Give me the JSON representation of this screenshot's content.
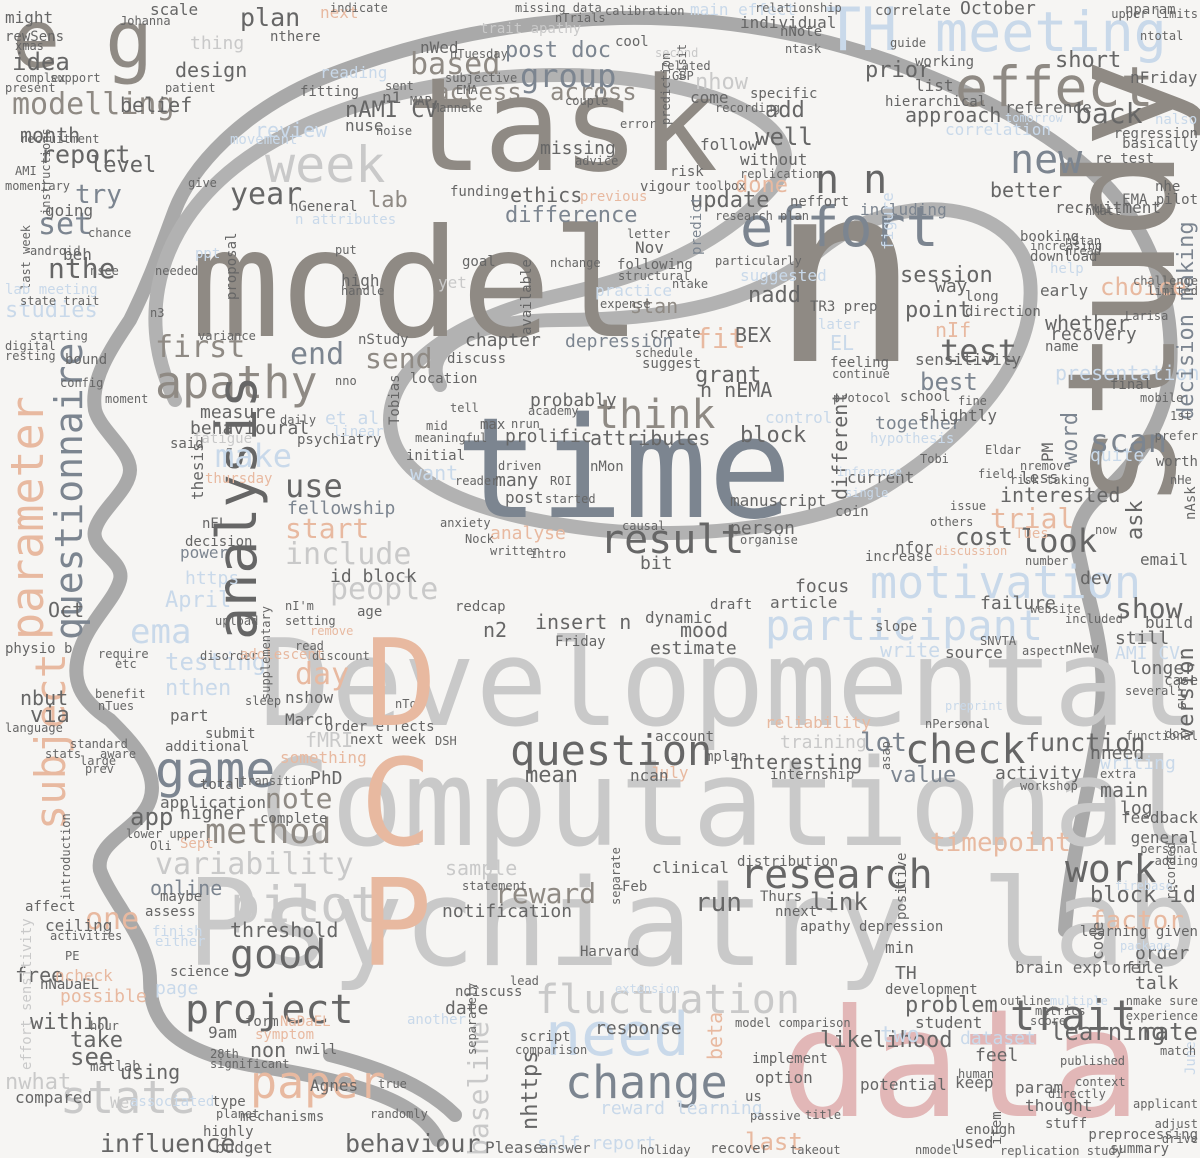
{
  "palette": {
    "background": "#f6f5f3",
    "outline": "#a9a9a9",
    "peach": "#e8b9a0",
    "greige": "#8f8a84",
    "grey": "#c9c9c9",
    "slate": "#7c8590",
    "sky": "#c9d9ea",
    "rose": "#e2b7b7",
    "dark": "#666666"
  },
  "icons": {
    "silhouette": "head-profile-with-spiral-brain"
  },
  "words": {
    "model": "model",
    "n_big": "n",
    "task": "task",
    "time": "time",
    "study": "study",
    "developmental": "Developmental",
    "computational": "Computational",
    "psychiatry_lab": "Psychiatry lab",
    "data": "data",
    "letter_d": "D",
    "letter_c": "C",
    "letter_p": "P",
    "e": "e",
    "g": "g",
    "th": "TH",
    "meeting": "meeting",
    "effect": "effect",
    "week": "week",
    "effort": "effort",
    "new": "new",
    "apathy": "apathy",
    "analysis": "analysis",
    "parameter": "parameter",
    "questionnaire": "questionnaire",
    "subject": "subject",
    "motivation": "motivation",
    "participant": "participant",
    "question": "question",
    "change": "change",
    "need": "need",
    "fluctuation": "fluctuation",
    "research": "research",
    "pilot": "pilot",
    "game": "game",
    "state": "state",
    "paper": "paper",
    "project": "project",
    "good": "good",
    "work": "work",
    "trait": "trait",
    "check": "check",
    "think": "think",
    "result": "result",
    "modelling": "modelling",
    "group": "group",
    "based": "based",
    "make": "make",
    "use": "use",
    "end": "end",
    "send": "send",
    "first": "first",
    "test": "test",
    "scan": "scan",
    "look": "look",
    "show": "show",
    "function": "function",
    "method": "method",
    "variability": "variability",
    "reward": "reward",
    "timepoint": "timepoint",
    "block_id": "block id",
    "factor": "factor",
    "likelihood": "likelihood",
    "learning": "learning",
    "rate": "rate",
    "baseline": "baseline",
    "influence": "influence",
    "behaviour": "behaviour",
    "within": "within",
    "set": "set",
    "nthe": "nthe",
    "year": "year",
    "idea": "idea",
    "report": "report",
    "plan": "plan",
    "October": "October",
    "post_doc": "post doc",
    "across": "across",
    "access": "access",
    "missing": "missing",
    "ethics": "ethics",
    "difference": "difference",
    "done": "done",
    "update": "update",
    "well": "well",
    "nhow": "nhow",
    "add": "add",
    "prior": "prior",
    "approach": "approach",
    "back": "back",
    "short": "short",
    "nFriday": "nFriday",
    "nAMI_CV": "nAMI CV",
    "people": "people",
    "include": "include",
    "start": "start",
    "ema": "ema",
    "April": "April",
    "testing": "testing",
    "nthen": "nthen",
    "mood": "mood",
    "estimate": "estimate",
    "insert_n": "insert n",
    "n2": "n2",
    "day": "day",
    "grant": "grant",
    "nEMA": "n nEMA",
    "block": "block",
    "attributes": "attributes",
    "different": "different",
    "point": "point",
    "best": "best",
    "session": "session",
    "way": "way",
    "choice": "choice",
    "whether": "whether",
    "recovery": "recovery",
    "presentation": "presentation",
    "decision_making": "decision making",
    "version": "version",
    "word": "word",
    "interested": "interested",
    "trial": "trial",
    "cost": "cost",
    "ask": "ask",
    "email": "email",
    "dev": "dev",
    "failure": "failure",
    "longer": "longer",
    "activity": "activity",
    "value": "value",
    "interesting": "interesting",
    "training": "training",
    "lot": "lot",
    "nneed": "nneed",
    "writing": "writing",
    "main": "main",
    "log": "log",
    "feedback": "feedback",
    "general": "general",
    "link": "link",
    "run": "run",
    "sample": "sample",
    "notification": "notification",
    "nhttps": "nhttps",
    "reward_learning": "reward learning",
    "self_report": "self report",
    "last": "last",
    "note": "note",
    "app": "app",
    "higher": "higher",
    "online": "online",
    "one": "one",
    "threshold": "threshold",
    "9am": "9am",
    "non": "non",
    "see": "see",
    "take": "take",
    "using": "using",
    "compared": "compared",
    "nwhat": "nwhat",
    "possible": "possible",
    "free": "free",
    "nbut": "nbut",
    "via": "via",
    "Oct": "Oct",
    "level": "level",
    "try": "try",
    "month": "month",
    "belief": "belief",
    "design": "design",
    "review": "review",
    "fit": "fit",
    "BEX": "BEX",
    "nadd": "nadd",
    "stan": "stan",
    "chapter": "chapter",
    "depression": "depression",
    "mean": "mean",
    "probably": "probably",
    "prolific": "prolific",
    "many": "many",
    "post": "post",
    "want": "want",
    "nMon": "nMon",
    "manuscript": "manuscript",
    "person": "person",
    "id_block": "id block",
    "fellowship": "fellowship",
    "analyse": "analyse",
    "et_al": "et al",
    "measure": "measure",
    "behavioural": "behavioural",
    "studies": "studies",
    "lab": "lab",
    "might": "might",
    "scale": "scale",
    "next": "next",
    "thing": "thing",
    "nWed": "nWed",
    "reading": "reading",
    "nhere": "nthere",
    "cool": "cool",
    "nparam": "nparam",
    "ntotal": "ntotal",
    "nuse": "nuse",
    "TR3_prep": "TR3 prep",
    "nIf": "nIf",
    "EL": "EL",
    "PhD": "PhD",
    "fMRI": "fMRI",
    "March": "March",
    "nshow": "nshow",
    "Friday": "Friday",
    "redcap": "redcap",
    "draft": "draft",
    "focus": "focus",
    "article": "article",
    "dynamic": "dynamic",
    "slope": "slope",
    "source": "source",
    "write": "write",
    "nNew": "nNew",
    "AMI_CV": "AMI CV",
    "still": "still",
    "build": "build",
    "order": "order",
    "talk": "talk",
    "file": "file",
    "brain_explorer": "brain explorer",
    "problem": "problem",
    "student": "student",
    "two": "two",
    "beta": "beta",
    "dataset": "dataset",
    "feel": "feel",
    "param": "param",
    "thought": "thought",
    "stuff": "stuff",
    "summary": "summary",
    "potential": "potential",
    "option": "option",
    "us": "us",
    "response": "response",
    "date": "date",
    "ndiscuss": "ndiscuss",
    "form": "form",
    "page": "page",
    "NaDaEL": "NaDaEL",
    "science": "science",
    "maybe": "maybe",
    "affect": "affect",
    "ceiling": "ceiling",
    "assess": "assess",
    "power": "power",
    "nEL": "nEL",
    "decision": "decision",
    "thesis": "thesis",
    "something": "something",
    "complete": "complete",
    "application": "application",
    "additional": "additional",
    "submit": "submit",
    "part": "part",
    "https": "https",
    "clinical": "clinical",
    "distribution": "distribution",
    "Feb": "Feb",
    "Thurs": "Thurs",
    "nnext": "nnext",
    "apathy_depression": "apathy depression",
    "positive": "positive",
    "TH_small": "TH",
    "min": "min",
    "development": "development",
    "Harvard": "Harvard",
    "code": "code",
    "account": "account",
    "July": "July",
    "Please": "Please",
    "answer": "answer",
    "budget": "budget",
    "Agnes": "Agnes",
    "June": "June",
    "used": "used",
    "keep": "keep",
    "preprocessing": "preprocessing",
    "replication_study": "replication study",
    "ncan": "ncan",
    "mplan": "mplan",
    "nAsk": "nAsk",
    "hypothesis": "hypothesis",
    "together": "together",
    "control": "control",
    "nfor": "nfor",
    "coin": "coin",
    "increase": "increase",
    "current": "current",
    "nremove": "nremove",
    "less": "less",
    "PM": "PM",
    "quite": "quite",
    "slightly": "slightly",
    "school": "school",
    "booking": "booking",
    "download": "download",
    "help": "help",
    "early": "early",
    "long": "long",
    "direction": "direction",
    "sensitivity": "sensitivity",
    "name": "name",
    "final": "final",
    "reference": "reference",
    "correlation": "correlation",
    "regression": "regression",
    "basically": "basically",
    "re_test": "re test",
    "EMA_pilot": "EMA pilot",
    "recruitment": "recruitment",
    "nhe": "nhe",
    "including": "including",
    "better": "better",
    "without": "without",
    "follow": "follow",
    "come": "come",
    "record": "recording",
    "specific": "specific",
    "individual": "individual",
    "working": "working",
    "list": "list",
    "correlate": "correlate",
    "guide": "guide",
    "ntask": "ntask",
    "nNote": "nNote",
    "main_effect": "main effect",
    "relationship": "relationship",
    "trait_apathy": "trait apathy",
    "missing_data": "missing data",
    "calibration": "calibration",
    "nTrials": "nTrials",
    "indicate": "indicate",
    "fitting": "fitting",
    "n1": "n1",
    "sent": "sent",
    "n_mid": "n n",
    "error": "error",
    "advice": "advice",
    "risk": "risk",
    "funding": "funding",
    "previous": "previous",
    "vigour": "vigour",
    "nGeneral": "nGeneral",
    "n_attributes": "n attributes",
    "MAP": "MAP",
    "noise": "noise",
    "movement": "movement",
    "patient": "patient",
    "support": "support",
    "present": "present",
    "complex": "complex",
    "xmas": "xmas",
    "AMI": "AMI",
    "recruitment_small": "recruitment",
    "momentary": "momentary",
    "instructions": "instructions",
    "give": "give",
    "going": "going",
    "last_week": "last week",
    "android": "android",
    "chance": "chance",
    "beh": "beh",
    "nsee": "nsee",
    "lab_meeting": "lab meeting",
    "state_trait": "state trait",
    "resting": "resting",
    "digital": "digital",
    "starting": "starting",
    "physio_b": "physio b",
    "language": "language",
    "stats": "stats",
    "standard": "standard",
    "prev": "prev",
    "large": "large",
    "aware": "aware",
    "effort_sensitivity": "effort sensitivity",
    "introduction": "introduction",
    "activities": "activities",
    "PE": "PE",
    "nNaDaEL": "nNaDaEL",
    "nTues": "nTues",
    "benefit": "benefit",
    "etc": "etc",
    "require": "require",
    "upload": "upload",
    "disorder": "disorder",
    "adolescent": "adolescent",
    "nI_m": "nI'm",
    "setting": "setting",
    "age": "age",
    "remove": "remove",
    "read": "read",
    "discount": "discount",
    "nTo": "nTo",
    "order_effects": "order effects",
    "next_week": "next week",
    "DSH": "DSH",
    "transition": "transition",
    "total": "total",
    "sleep": "sleep",
    "supplementary": "supplementary",
    "Sept": "Sept",
    "either": "either",
    "finish": "finish",
    "Oli": "Oli",
    "lower_upper": "lower upper",
    "Wed": "Wed",
    "associated": "associated",
    "type": "type",
    "highly": "highly",
    "planet": "planet",
    "mechanisms": "mechanisms",
    "28th": "28th",
    "significant": "significant",
    "nwill": "nwill",
    "symptom": "symptom",
    "hour": "hour",
    "matlab": "matlab",
    "ncheck": "ncheck",
    "true": "true",
    "randomly": "randomly",
    "holiday": "holiday",
    "takeout": "takeout",
    "title": "title",
    "passive": "passive",
    "recover": "recover",
    "implement": "implement",
    "model_comparison": "model comparison",
    "comparison": "comparison",
    "script": "script",
    "another": "another",
    "separately": "separately",
    "extension": "extension",
    "lead": "lead",
    "statement": "statement",
    "separate": "separate",
    "bit": "bit",
    "intro": "intro",
    "written": "written",
    "anxiety": "anxiety",
    "Nock": "Nock",
    "causal": "causal",
    "organise": "organise",
    "driven": "driven",
    "reader": "reader",
    "initial": "initial",
    "started": "started",
    "ROI": "ROI",
    "academy": "academy",
    "tell": "tell",
    "max": "max",
    "nrun": "nrun",
    "mid": "mid",
    "meaningful": "meaningful",
    "available": "available",
    "following": "following",
    "Nov": "Nov",
    "letter": "letter",
    "nchange": "nchange",
    "practice": "practice",
    "expense": "expense",
    "suggest": "suggest",
    "schedule": "schedule",
    "create": "create",
    "discuss": "discuss",
    "nStudy": "nStudy",
    "location": "location",
    "nno": "nno",
    "psychiatry": "psychiatry",
    "Tobias": "Tobias",
    "daily": "daily",
    "fatigue": "fatigue",
    "said": "said",
    "linear": "linear",
    "ppt": "ppt",
    "needed": "needed",
    "n3": "n3",
    "variance": "variance",
    "proposal": "proposal",
    "config": "config",
    "moment": "moment",
    "bound": "bound",
    "put": "put",
    "high": "high",
    "handle": "handle",
    "yet": "yet",
    "goal": "goal",
    "nTuesday": "nTuesday",
    "rewSens": "rewSens",
    "Johanna": "Johanna",
    "Manneke": "Manneke",
    "suggested": "suggested",
    "predict": "predict",
    "ntake": "ntake",
    "thursday": "thursday",
    "Tobi": "Tobi",
    "reliability": "reliability",
    "internship": "internship",
    "asap": "asap",
    "preprint": "preprint",
    "workshop": "workshop",
    "nPersonal": "nPersonal",
    "several": "several",
    "case": "case",
    "sure": "sure",
    "doc": "doc",
    "functional": "functional",
    "extra": "extra",
    "personal": "personal",
    "adding": "adding",
    "applicant": "applicant",
    "adjust": "adjust",
    "drive": "drive",
    "recorded": "recorded",
    "firebase": "firebase",
    "learning_given": "learning given",
    "package": "package",
    "nmake_sure": "nmake sure",
    "experience": "experience",
    "match": "match",
    "metrics": "metrics",
    "score": "score",
    "outline": "outline",
    "multiple": "multiple",
    "published": "published",
    "directly": "directly",
    "context": "context",
    "human": "human",
    "enough": "enough",
    "nmodel": "nmodel",
    "item": "item",
    "SNVTA": "SNVTA",
    "aspect": "aspect",
    "website": "website",
    "included": "included",
    "number": "number",
    "nnow": "now",
    "tues": "Tues",
    "discussion": "discussion",
    "others": "others",
    "issue": "issue",
    "second": "second",
    "related": "related",
    "GBP": "GBP",
    "visit": "visit",
    "prediction": "prediction",
    "EMA_small": "EMA",
    "subjective": "subjective",
    "couple": "couple",
    "toolbox": "toolbox",
    "replication": "replication",
    "research_plan": "research plan",
    "particularly": "particularly",
    "structural": "structural",
    "neffort": "neffort",
    "figure": "figure",
    "later": "later",
    "feeling": "feeling",
    "continue": "continue",
    "protocol": "protocol",
    "fine": "fine",
    "mobile": "mobile",
    "1st": "1st",
    "prefer": "prefer",
    "Eldar": "Eldar",
    "field": "field",
    "risk_taking": "risk taking",
    "inference": "inference",
    "single": "single",
    "worth": "worth",
    "nHe": "nHe",
    "hierarchical": "hierarchical",
    "nalso": "nalso",
    "upper_limits": "upper limits",
    "tomorrow": "tomorrow",
    "nStan": "nStan",
    "nread": "nread",
    "increasing": "increasing",
    "Larisa": "Larisa",
    "nMatt": "nMatt",
    "challenge": "challenge",
    "limited": "limited"
  }
}
